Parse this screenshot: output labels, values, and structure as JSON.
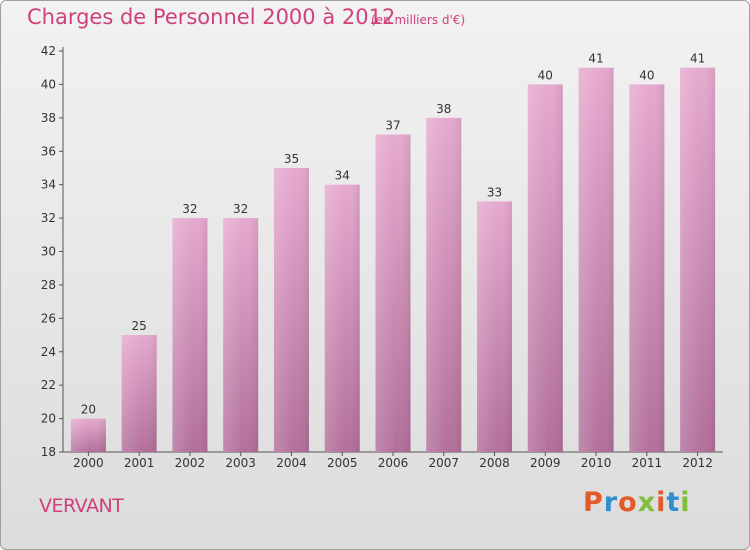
{
  "header": {
    "title": "Charges de Personnel 2000 à 2012",
    "subtitle": "(en milliers d'€)"
  },
  "footer": {
    "commune": "VERVANT",
    "logo": "Proxiti"
  },
  "colors": {
    "accent": "#d0407a",
    "bar_top": "#e6a9cf",
    "bar_bottom": "#b26f9a",
    "logo_letters": [
      "#e05a2a",
      "#2f8fd0",
      "#e05a2a",
      "#7fbf3a",
      "#e05a2a",
      "#2f8fd0",
      "#7fbf3a"
    ]
  },
  "chart_data": {
    "type": "bar",
    "categories": [
      "2000",
      "2001",
      "2002",
      "2003",
      "2004",
      "2005",
      "2006",
      "2007",
      "2008",
      "2009",
      "2010",
      "2011",
      "2012"
    ],
    "values": [
      20,
      25,
      32,
      32,
      35,
      34,
      37,
      38,
      33,
      40,
      41,
      40,
      41
    ],
    "ylim": [
      18,
      42
    ],
    "yticks": [
      18,
      20,
      22,
      24,
      26,
      28,
      30,
      32,
      34,
      36,
      38,
      40,
      42
    ],
    "grid": false
  }
}
